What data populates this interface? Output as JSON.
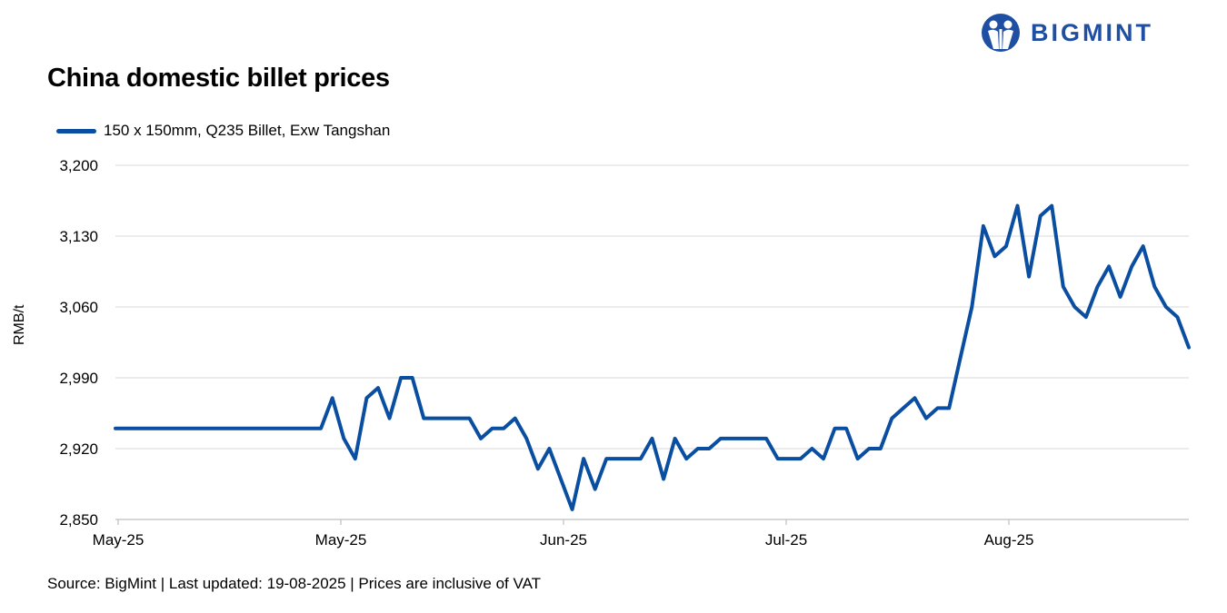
{
  "brand": {
    "name": "BIGMINT",
    "accent": "#1f4fa3"
  },
  "chart_data": {
    "type": "line",
    "title": "China domestic billet prices",
    "ylabel": "RMB/t",
    "xlabel": "",
    "ylim": [
      2850,
      3200
    ],
    "y_ticks": [
      "2,850",
      "2,920",
      "2,990",
      "3,060",
      "3,130",
      "3,200"
    ],
    "y_tick_values": [
      2850,
      2920,
      2990,
      3060,
      3130,
      3200
    ],
    "x_tick_labels": [
      "May-25",
      "May-25",
      "Jun-25",
      "Jul-25",
      "Aug-25"
    ],
    "grid": true,
    "legend_position": "top-left",
    "series": [
      {
        "name": "150 x 150mm, Q235 Billet, Exw Tangshan",
        "color": "#0a4ea2",
        "values": [
          2940,
          2940,
          2940,
          2940,
          2940,
          2940,
          2940,
          2940,
          2940,
          2940,
          2940,
          2940,
          2940,
          2940,
          2940,
          2940,
          2940,
          2940,
          2940,
          2970,
          2930,
          2910,
          2970,
          2980,
          2950,
          2990,
          2990,
          2950,
          2950,
          2950,
          2950,
          2950,
          2930,
          2940,
          2940,
          2950,
          2930,
          2900,
          2920,
          2890,
          2860,
          2910,
          2880,
          2910,
          2910,
          2910,
          2910,
          2930,
          2890,
          2930,
          2910,
          2920,
          2920,
          2930,
          2930,
          2930,
          2930,
          2930,
          2910,
          2910,
          2910,
          2920,
          2910,
          2940,
          2940,
          2910,
          2920,
          2920,
          2950,
          2960,
          2970,
          2950,
          2960,
          2960,
          3010,
          3060,
          3140,
          3110,
          3120,
          3160,
          3090,
          3150,
          3160,
          3080,
          3060,
          3050,
          3080,
          3100,
          3070,
          3100,
          3120,
          3080,
          3060,
          3050,
          3020
        ]
      }
    ]
  },
  "footer": {
    "source": "Source: BigMint | Last updated: 19-08-2025 | Prices are inclusive of VAT"
  }
}
